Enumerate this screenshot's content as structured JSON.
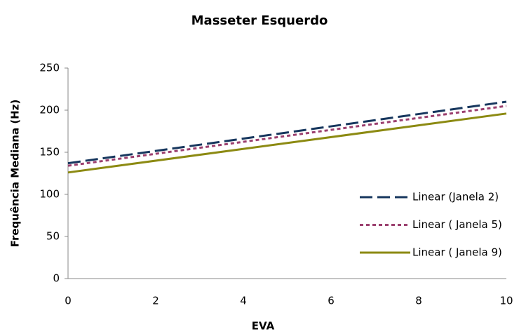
{
  "chart_data": {
    "type": "line",
    "title": "Masseter Esquerdo",
    "x_label": "EVA",
    "y_label": "Frequência Mediana (Hz)",
    "x": [
      0,
      10
    ],
    "series": [
      {
        "name": "Linear (Janela 2)",
        "color": "#17375e",
        "line_style": "dashed",
        "values": [
          137,
          210
        ]
      },
      {
        "name": "Linear ( Janela 5)",
        "color": "#9b3f6e",
        "line_style": "dotted",
        "values": [
          134,
          205
        ]
      },
      {
        "name": "Linear ( Janela 9)",
        "color": "#8c8a12",
        "line_style": "solid",
        "values": [
          126,
          196
        ]
      }
    ],
    "xlim": [
      0,
      10
    ],
    "xticks": [
      0,
      2,
      4,
      6,
      8,
      10
    ],
    "ylim": [
      0,
      250
    ],
    "yticks": [
      0,
      50,
      100,
      150,
      200,
      250
    ],
    "grid": false,
    "legend": "right"
  }
}
